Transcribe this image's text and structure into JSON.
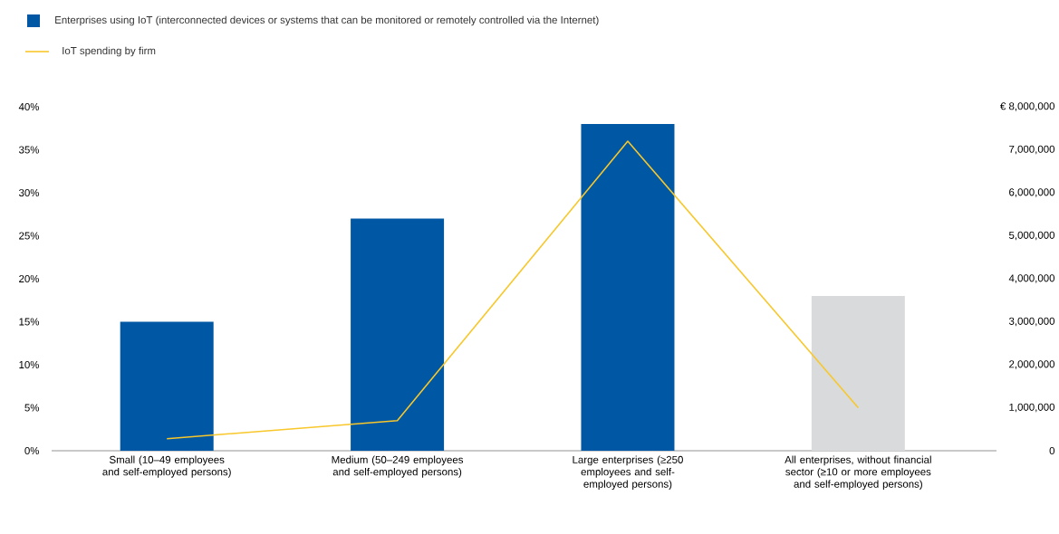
{
  "chart_data": {
    "type": "bar",
    "categories": [
      "Small (10–49 employees and self-employed persons)",
      "Medium (50–249 employees and self-employed persons)",
      "Large enterprises (≥250 employees and self-employed persons)",
      "All enterprises, without financial sector (≥10 or more employees and self-employed persons)"
    ],
    "series": [
      {
        "name": "Enterprises using IoT (interconnected devices or systems that can be monitored or remotely controlled via the Internet)",
        "color": "#0057a4",
        "colors": [
          "#0057a4",
          "#0057a4",
          "#0057a4",
          "#d9dadb"
        ],
        "values": [
          15,
          27,
          38,
          18
        ]
      },
      {
        "name": "IoT spending by firm",
        "type": "line",
        "axis": "y2",
        "color": "#f8c72a",
        "values": [
          280000,
          700000,
          7200000,
          1000000
        ]
      }
    ],
    "ylim": [
      0,
      40
    ],
    "yticks": [
      {
        "value": 0,
        "label": "0%"
      },
      {
        "value": 5,
        "label": "5%"
      },
      {
        "value": 10,
        "label": "10%"
      },
      {
        "value": 15,
        "label": "15%"
      },
      {
        "value": 20,
        "label": "20%"
      },
      {
        "value": 25,
        "label": "25%"
      },
      {
        "value": 30,
        "label": "30%"
      },
      {
        "value": 35,
        "label": "35%"
      },
      {
        "value": 40,
        "label": "40%"
      }
    ],
    "y2lim": [
      0,
      8000000
    ],
    "y2ticks": [
      0,
      {
        "value": 1000000,
        "label": "1,000,000"
      },
      {
        "value": 2000000,
        "label": "2,000,000"
      },
      {
        "value": 3000000,
        "label": "3,000,000"
      },
      {
        "value": 4000000,
        "label": "4,000,000"
      },
      {
        "value": 5000000,
        "label": "5,000,000"
      },
      {
        "value": 6000000,
        "label": "6,000,000"
      },
      {
        "value": 7000000,
        "label": "7,000,000"
      },
      {
        "value": 8000000,
        "label": "€ 8,000,000"
      }
    ],
    "legend": "top left",
    "marker": "none",
    "line_style": "solid"
  }
}
